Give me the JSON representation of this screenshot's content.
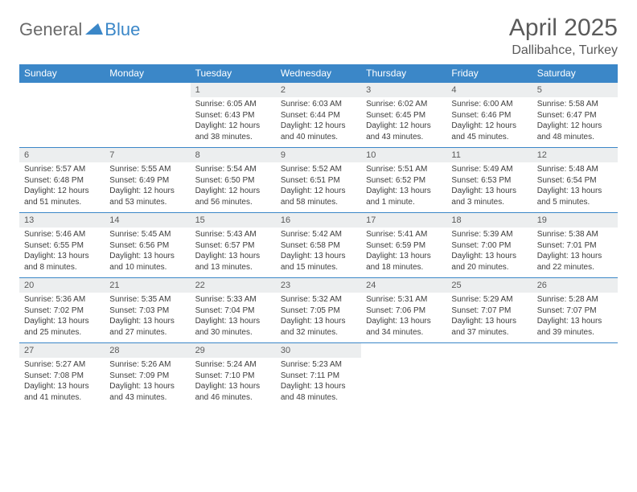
{
  "logo": {
    "text1": "General",
    "text2": "Blue",
    "color1": "#6a6a6a",
    "color2": "#3b87c8"
  },
  "title": "April 2025",
  "location": "Dallibahce, Turkey",
  "colors": {
    "header_bg": "#3b87c8",
    "header_text": "#ffffff",
    "daynum_bg": "#eceeef",
    "text": "#3d3d3d",
    "title_text": "#5a5a5a",
    "border": "#3b87c8"
  },
  "day_names": [
    "Sunday",
    "Monday",
    "Tuesday",
    "Wednesday",
    "Thursday",
    "Friday",
    "Saturday"
  ],
  "weeks": [
    [
      null,
      null,
      {
        "n": "1",
        "sr": "6:05 AM",
        "ss": "6:43 PM",
        "dl": "12 hours and 38 minutes."
      },
      {
        "n": "2",
        "sr": "6:03 AM",
        "ss": "6:44 PM",
        "dl": "12 hours and 40 minutes."
      },
      {
        "n": "3",
        "sr": "6:02 AM",
        "ss": "6:45 PM",
        "dl": "12 hours and 43 minutes."
      },
      {
        "n": "4",
        "sr": "6:00 AM",
        "ss": "6:46 PM",
        "dl": "12 hours and 45 minutes."
      },
      {
        "n": "5",
        "sr": "5:58 AM",
        "ss": "6:47 PM",
        "dl": "12 hours and 48 minutes."
      }
    ],
    [
      {
        "n": "6",
        "sr": "5:57 AM",
        "ss": "6:48 PM",
        "dl": "12 hours and 51 minutes."
      },
      {
        "n": "7",
        "sr": "5:55 AM",
        "ss": "6:49 PM",
        "dl": "12 hours and 53 minutes."
      },
      {
        "n": "8",
        "sr": "5:54 AM",
        "ss": "6:50 PM",
        "dl": "12 hours and 56 minutes."
      },
      {
        "n": "9",
        "sr": "5:52 AM",
        "ss": "6:51 PM",
        "dl": "12 hours and 58 minutes."
      },
      {
        "n": "10",
        "sr": "5:51 AM",
        "ss": "6:52 PM",
        "dl": "13 hours and 1 minute."
      },
      {
        "n": "11",
        "sr": "5:49 AM",
        "ss": "6:53 PM",
        "dl": "13 hours and 3 minutes."
      },
      {
        "n": "12",
        "sr": "5:48 AM",
        "ss": "6:54 PM",
        "dl": "13 hours and 5 minutes."
      }
    ],
    [
      {
        "n": "13",
        "sr": "5:46 AM",
        "ss": "6:55 PM",
        "dl": "13 hours and 8 minutes."
      },
      {
        "n": "14",
        "sr": "5:45 AM",
        "ss": "6:56 PM",
        "dl": "13 hours and 10 minutes."
      },
      {
        "n": "15",
        "sr": "5:43 AM",
        "ss": "6:57 PM",
        "dl": "13 hours and 13 minutes."
      },
      {
        "n": "16",
        "sr": "5:42 AM",
        "ss": "6:58 PM",
        "dl": "13 hours and 15 minutes."
      },
      {
        "n": "17",
        "sr": "5:41 AM",
        "ss": "6:59 PM",
        "dl": "13 hours and 18 minutes."
      },
      {
        "n": "18",
        "sr": "5:39 AM",
        "ss": "7:00 PM",
        "dl": "13 hours and 20 minutes."
      },
      {
        "n": "19",
        "sr": "5:38 AM",
        "ss": "7:01 PM",
        "dl": "13 hours and 22 minutes."
      }
    ],
    [
      {
        "n": "20",
        "sr": "5:36 AM",
        "ss": "7:02 PM",
        "dl": "13 hours and 25 minutes."
      },
      {
        "n": "21",
        "sr": "5:35 AM",
        "ss": "7:03 PM",
        "dl": "13 hours and 27 minutes."
      },
      {
        "n": "22",
        "sr": "5:33 AM",
        "ss": "7:04 PM",
        "dl": "13 hours and 30 minutes."
      },
      {
        "n": "23",
        "sr": "5:32 AM",
        "ss": "7:05 PM",
        "dl": "13 hours and 32 minutes."
      },
      {
        "n": "24",
        "sr": "5:31 AM",
        "ss": "7:06 PM",
        "dl": "13 hours and 34 minutes."
      },
      {
        "n": "25",
        "sr": "5:29 AM",
        "ss": "7:07 PM",
        "dl": "13 hours and 37 minutes."
      },
      {
        "n": "26",
        "sr": "5:28 AM",
        "ss": "7:07 PM",
        "dl": "13 hours and 39 minutes."
      }
    ],
    [
      {
        "n": "27",
        "sr": "5:27 AM",
        "ss": "7:08 PM",
        "dl": "13 hours and 41 minutes."
      },
      {
        "n": "28",
        "sr": "5:26 AM",
        "ss": "7:09 PM",
        "dl": "13 hours and 43 minutes."
      },
      {
        "n": "29",
        "sr": "5:24 AM",
        "ss": "7:10 PM",
        "dl": "13 hours and 46 minutes."
      },
      {
        "n": "30",
        "sr": "5:23 AM",
        "ss": "7:11 PM",
        "dl": "13 hours and 48 minutes."
      },
      null,
      null,
      null
    ]
  ],
  "labels": {
    "sunrise": "Sunrise:",
    "sunset": "Sunset:",
    "daylight": "Daylight:"
  }
}
